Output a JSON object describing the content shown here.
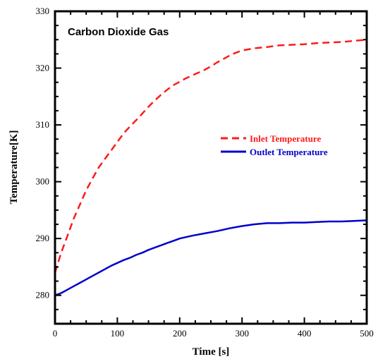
{
  "chart_data": {
    "type": "line",
    "title": "Carbon Dioxide Gas",
    "xlabel": "Time [s]",
    "ylabel": "Temperature[K]",
    "xlim": [
      0,
      500
    ],
    "ylim": [
      275,
      330
    ],
    "x_ticks": [
      0,
      100,
      200,
      300,
      400,
      500
    ],
    "y_ticks": [
      280,
      290,
      300,
      310,
      320,
      330
    ],
    "grid": false,
    "legend_position": "right",
    "series": [
      {
        "name": "Inlet Temperature",
        "color": "#ff1a1a",
        "style": "dashed",
        "x": [
          0,
          10,
          20,
          30,
          40,
          50,
          60,
          70,
          80,
          90,
          100,
          110,
          120,
          130,
          140,
          150,
          160,
          170,
          180,
          190,
          200,
          210,
          220,
          230,
          240,
          250,
          260,
          270,
          280,
          290,
          300,
          320,
          340,
          360,
          380,
          400,
          420,
          440,
          460,
          480,
          500
        ],
        "values": [
          284,
          287.5,
          290.5,
          293.5,
          296,
          298.5,
          300.5,
          302.5,
          304,
          305.5,
          307,
          308.5,
          309.7,
          310.8,
          312,
          313.2,
          314.3,
          315.3,
          316.2,
          317,
          317.6,
          318.2,
          318.7,
          319.2,
          319.7,
          320.3,
          321,
          321.6,
          322.2,
          322.7,
          323.1,
          323.5,
          323.7,
          324,
          324.1,
          324.2,
          324.4,
          324.5,
          324.6,
          324.8,
          325
        ]
      },
      {
        "name": "Outlet Temperature",
        "color": "#0000cc",
        "style": "solid",
        "x": [
          0,
          10,
          20,
          30,
          40,
          50,
          60,
          70,
          80,
          90,
          100,
          110,
          120,
          130,
          140,
          150,
          160,
          170,
          180,
          190,
          200,
          220,
          240,
          260,
          280,
          300,
          320,
          340,
          360,
          380,
          400,
          420,
          440,
          460,
          480,
          500
        ],
        "values": [
          280,
          280.4,
          281,
          281.6,
          282.2,
          282.8,
          283.4,
          284,
          284.6,
          285.2,
          285.7,
          286.2,
          286.6,
          287.1,
          287.5,
          288,
          288.4,
          288.8,
          289.2,
          289.6,
          290,
          290.5,
          290.9,
          291.3,
          291.8,
          292.2,
          292.5,
          292.7,
          292.7,
          292.8,
          292.8,
          292.9,
          293,
          293,
          293.1,
          293.2
        ]
      }
    ]
  }
}
